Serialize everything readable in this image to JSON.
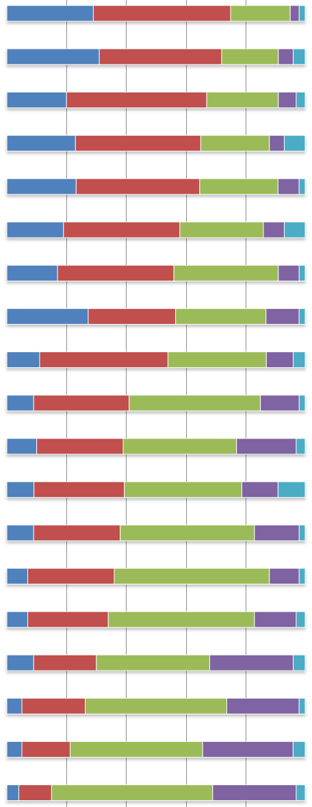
{
  "chart_data": {
    "type": "bar",
    "orientation": "horizontal",
    "stacked": true,
    "normalized": true,
    "grid": "vertical",
    "xlim": [
      0,
      100
    ],
    "series_colors": [
      "#4F81BD",
      "#C0504D",
      "#9BBB59",
      "#8064A2",
      "#4BACC6"
    ],
    "rows": [
      [
        29,
        46,
        20,
        3,
        2
      ],
      [
        31,
        41,
        19,
        5,
        4
      ],
      [
        20,
        47,
        24,
        6,
        3
      ],
      [
        23,
        42,
        23,
        5,
        7
      ],
      [
        23,
        41,
        26,
        7,
        2
      ],
      [
        19,
        39,
        28,
        7,
        7
      ],
      [
        17,
        39,
        35,
        7,
        2
      ],
      [
        27,
        29,
        30,
        11,
        2
      ],
      [
        11,
        43,
        33,
        9,
        4
      ],
      [
        9,
        32,
        44,
        13,
        2
      ],
      [
        10,
        29,
        38,
        20,
        3
      ],
      [
        9,
        30,
        39,
        12,
        9
      ],
      [
        9,
        29,
        45,
        15,
        2
      ],
      [
        7,
        29,
        52,
        10,
        2
      ],
      [
        7,
        27,
        49,
        14,
        3
      ],
      [
        9,
        21,
        38,
        28,
        4
      ],
      [
        5,
        21,
        47,
        24,
        2
      ],
      [
        5,
        16,
        44,
        30,
        4
      ],
      [
        4,
        11,
        54,
        28,
        3
      ]
    ]
  }
}
